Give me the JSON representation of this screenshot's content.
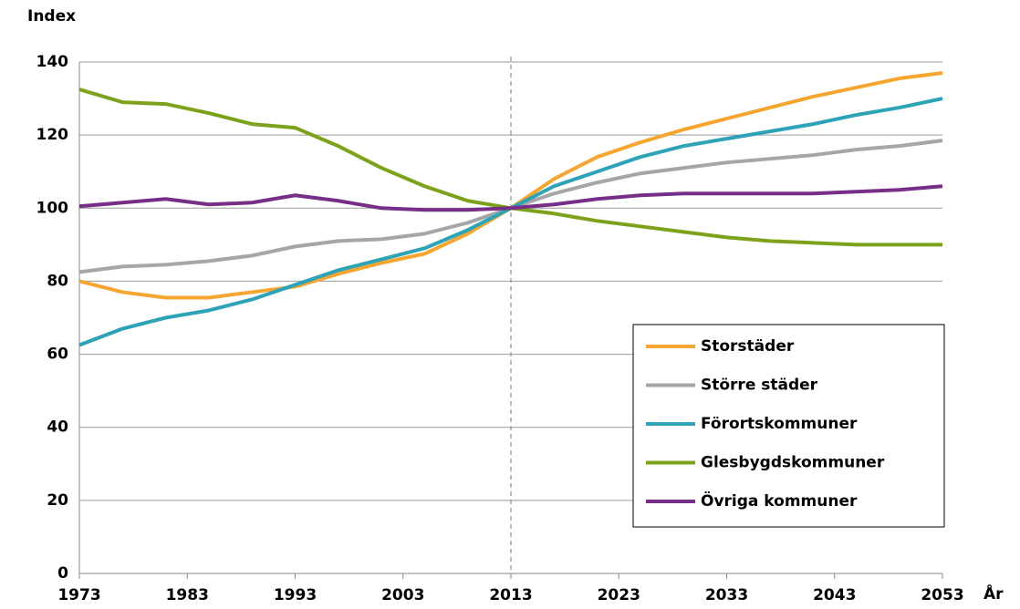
{
  "chart_data": {
    "type": "line",
    "y_label": "Index",
    "x_label": "År",
    "x": [
      1973,
      1977,
      1981,
      1985,
      1989,
      1993,
      1997,
      2001,
      2005,
      2009,
      2013,
      2017,
      2021,
      2025,
      2029,
      2033,
      2037,
      2041,
      2045,
      2049,
      2053
    ],
    "series": [
      {
        "name": "Storstäder",
        "color": "#f5a630",
        "values": [
          80,
          77,
          75.5,
          75.5,
          77,
          78.5,
          82,
          85,
          87.5,
          93,
          100,
          108,
          114,
          118,
          121.5,
          124.5,
          127.5,
          130.5,
          133,
          135.5,
          137
        ]
      },
      {
        "name": "Större städer",
        "color": "#a6a6a6",
        "values": [
          82.5,
          84,
          84.5,
          85.5,
          87,
          89.5,
          91,
          91.5,
          93,
          96,
          100,
          104,
          107,
          109.5,
          111,
          112.5,
          113.5,
          114.5,
          116,
          117,
          118.5
        ]
      },
      {
        "name": "Förortskommuner",
        "color": "#2ea3b8",
        "values": [
          62.5,
          67,
          70,
          72,
          75,
          79,
          83,
          86,
          89,
          94,
          100,
          106,
          110,
          114,
          117,
          119,
          121,
          123,
          125.5,
          127.5,
          130
        ]
      },
      {
        "name": "Glesbygdskommuner",
        "color": "#7ca21c",
        "values": [
          132.5,
          129,
          128.5,
          126,
          123,
          122,
          117,
          111,
          106,
          102,
          100,
          98.5,
          96.5,
          95,
          93.5,
          92,
          91,
          90.5,
          90,
          90,
          90
        ]
      },
      {
        "name": "Övriga kommuner",
        "color": "#772e86",
        "values": [
          100.5,
          101.5,
          102.5,
          101,
          101.5,
          103.5,
          102,
          100,
          99.5,
          99.5,
          100,
          101,
          102.5,
          103.5,
          104,
          104,
          104,
          104,
          104.5,
          105,
          106
        ]
      }
    ],
    "xlim": [
      1973,
      2053
    ],
    "xticks": [
      1973,
      1983,
      1993,
      2003,
      2013,
      2023,
      2033,
      2043,
      2053
    ],
    "ylim": [
      0,
      140
    ],
    "yticks": [
      0,
      20,
      40,
      60,
      80,
      100,
      120,
      140
    ],
    "grid": true,
    "reference_line_x": 2013,
    "legend": "lower right"
  }
}
